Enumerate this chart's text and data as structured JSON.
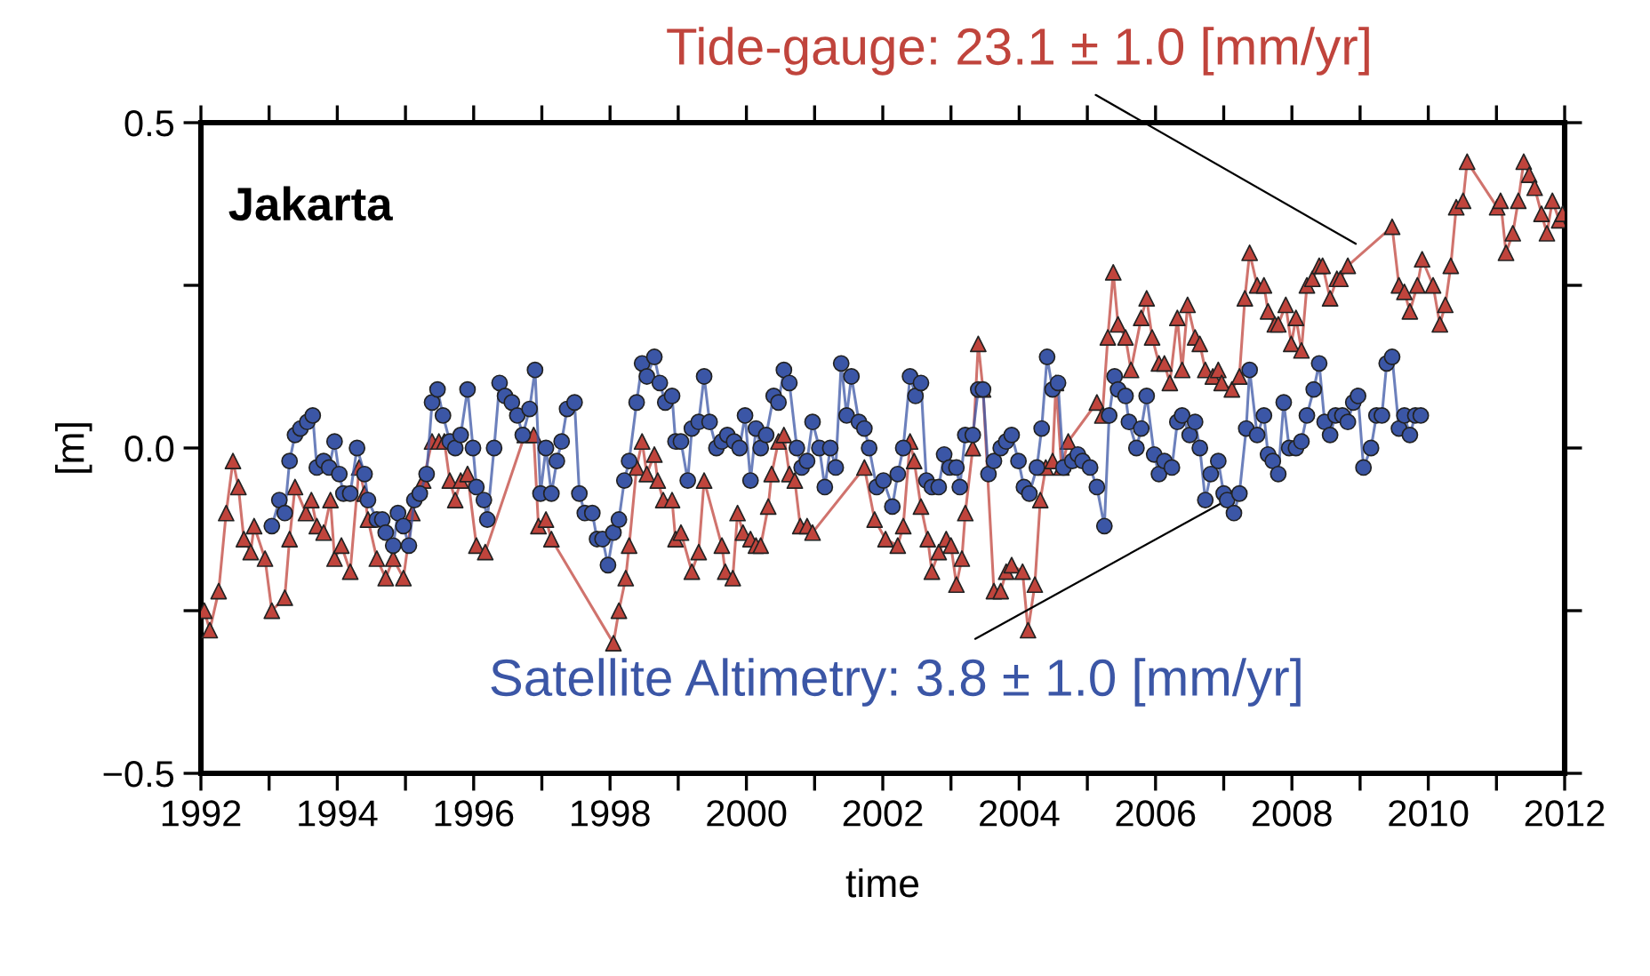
{
  "chart_data": {
    "type": "line",
    "title": "Jakarta",
    "xlabel": "time",
    "ylabel": "[m]",
    "xlim": [
      1992,
      2012
    ],
    "xticks": [
      1992,
      {
        "value": 1993,
        "label": null
      },
      1994,
      {
        "value": 1995,
        "label": null
      },
      1996,
      {
        "value": 1997,
        "label": null
      },
      1998,
      {
        "value": 1999,
        "label": null
      },
      2000,
      {
        "value": 2001,
        "label": null
      },
      2002,
      {
        "value": 2003,
        "label": null
      },
      2004,
      {
        "value": 2005,
        "label": null
      },
      2006,
      {
        "value": 2007,
        "label": null
      },
      2008,
      {
        "value": 2009,
        "label": null
      },
      2010,
      {
        "value": 2011,
        "label": null
      },
      2012
    ],
    "ylim": [
      -0.5,
      0.5
    ],
    "yticks": [
      {
        "value": -0.5,
        "label": "−0.5"
      },
      {
        "value": -0.25,
        "label": null
      },
      {
        "value": 0,
        "label": "0.0"
      },
      {
        "value": 0.25,
        "label": null
      },
      0.5
    ],
    "grid": false,
    "legend": false,
    "line_style": "solid",
    "series": [
      {
        "color": "#c0443c",
        "marker": "triangle",
        "x": [
          1992.05,
          1992.13,
          1992.26,
          1992.37,
          1992.47,
          1992.55,
          1992.63,
          1992.73,
          1992.78,
          1992.94,
          1993.04,
          1993.23,
          1993.3,
          1993.38,
          1993.54,
          1993.62,
          1993.7,
          1993.8,
          1993.9,
          1993.96,
          1994.06,
          1994.19,
          1994.32,
          1994.4,
          1994.45,
          1994.58,
          1994.71,
          1994.82,
          1994.97,
          1995.1,
          1995.26,
          1995.39,
          1995.49,
          1995.57,
          1995.65,
          1995.73,
          1995.81,
          1995.91,
          1996.04,
          1996.17,
          1996.75,
          1996.88,
          1996.95,
          1997.06,
          1997.14,
          1998.05,
          1998.13,
          1998.23,
          1998.28,
          1998.39,
          1998.47,
          1998.54,
          1998.65,
          1998.7,
          1998.78,
          1998.91,
          1998.96,
          1999.04,
          1999.2,
          1999.3,
          1999.38,
          1999.64,
          1999.69,
          1999.8,
          1999.87,
          1999.95,
          2000.06,
          2000.14,
          2000.21,
          2000.32,
          2000.37,
          2000.47,
          2000.55,
          2000.63,
          2000.71,
          2000.79,
          2000.89,
          2000.97,
          2001.73,
          2001.88,
          2002.04,
          2002.22,
          2002.3,
          2002.4,
          2002.46,
          2002.56,
          2002.66,
          2002.72,
          2002.82,
          2002.93,
          2003.0,
          2003.08,
          2003.16,
          2003.21,
          2003.32,
          2003.4,
          2003.47,
          2003.63,
          2003.73,
          2003.81,
          2003.89,
          2004.05,
          2004.13,
          2004.23,
          2004.31,
          2004.39,
          2004.49,
          2004.54,
          2004.62,
          2004.72,
          2005.14,
          2005.22,
          2005.3,
          2005.38,
          2005.45,
          2005.56,
          2005.64,
          2005.79,
          2005.87,
          2005.95,
          2006.05,
          2006.13,
          2006.21,
          2006.32,
          2006.39,
          2006.47,
          2006.58,
          2006.65,
          2006.73,
          2006.84,
          2006.92,
          2006.97,
          2007.12,
          2007.23,
          2007.31,
          2007.38,
          2007.49,
          2007.59,
          2007.65,
          2007.75,
          2007.8,
          2007.91,
          2007.99,
          2008.06,
          2008.14,
          2008.22,
          2008.3,
          2008.4,
          2008.45,
          2008.56,
          2008.66,
          2008.71,
          2008.82,
          2009.47,
          2009.57,
          2009.65,
          2009.73,
          2009.84,
          2009.91,
          2010.07,
          2010.17,
          2010.25,
          2010.33,
          2010.41,
          2010.51,
          2010.57,
          2011.01,
          2011.06,
          2011.14,
          2011.24,
          2011.32,
          2011.4,
          2011.48,
          2011.56,
          2011.66,
          2011.74,
          2011.82,
          2011.92,
          2011.97
        ],
        "values": [
          -0.25,
          -0.28,
          -0.22,
          -0.1,
          -0.02,
          -0.06,
          -0.14,
          -0.16,
          -0.12,
          -0.17,
          -0.25,
          -0.23,
          -0.14,
          -0.06,
          -0.1,
          -0.08,
          -0.12,
          -0.13,
          -0.08,
          -0.17,
          -0.15,
          -0.19,
          -0.03,
          -0.07,
          -0.11,
          -0.17,
          -0.2,
          -0.17,
          -0.2,
          -0.1,
          -0.05,
          0.01,
          0.01,
          0.01,
          -0.05,
          -0.08,
          -0.05,
          -0.04,
          -0.15,
          -0.16,
          0.02,
          0.02,
          -0.12,
          -0.11,
          -0.14,
          -0.3,
          -0.25,
          -0.2,
          -0.15,
          -0.03,
          0.01,
          -0.04,
          -0.01,
          -0.05,
          -0.08,
          -0.08,
          -0.14,
          -0.13,
          -0.19,
          -0.16,
          -0.05,
          -0.15,
          -0.19,
          -0.2,
          -0.1,
          -0.13,
          -0.14,
          -0.15,
          -0.15,
          -0.09,
          -0.04,
          0.01,
          0.02,
          -0.04,
          -0.05,
          -0.12,
          -0.12,
          -0.13,
          -0.03,
          -0.11,
          -0.14,
          -0.15,
          -0.12,
          0.01,
          -0.02,
          -0.09,
          -0.14,
          -0.19,
          -0.16,
          -0.14,
          -0.15,
          -0.21,
          -0.17,
          -0.1,
          0.0,
          0.16,
          0.09,
          -0.22,
          -0.22,
          -0.19,
          -0.18,
          -0.19,
          -0.28,
          -0.21,
          -0.08,
          -0.03,
          -0.02,
          0.1,
          -0.03,
          0.01,
          0.07,
          0.05,
          0.17,
          0.27,
          0.19,
          0.17,
          0.12,
          0.2,
          0.23,
          0.17,
          0.13,
          0.13,
          0.1,
          0.2,
          0.12,
          0.22,
          0.17,
          0.16,
          0.12,
          0.11,
          0.12,
          0.1,
          0.09,
          0.11,
          0.23,
          0.3,
          0.25,
          0.25,
          0.21,
          0.19,
          0.19,
          0.22,
          0.16,
          0.2,
          0.15,
          0.25,
          0.26,
          0.28,
          0.28,
          0.23,
          0.26,
          0.26,
          0.28,
          0.34,
          0.25,
          0.24,
          0.21,
          0.25,
          0.29,
          0.25,
          0.19,
          0.22,
          0.28,
          0.37,
          0.38,
          0.44,
          0.37,
          0.38,
          0.3,
          0.33,
          0.38,
          0.44,
          0.42,
          0.4,
          0.36,
          0.33,
          0.38,
          0.35,
          0.36
        ]
      },
      {
        "color": "#3b56a6",
        "marker": "circle",
        "x": [
          1993.04,
          1993.15,
          1993.23,
          1993.3,
          1993.38,
          1993.46,
          1993.56,
          1993.64,
          1993.7,
          1993.8,
          1993.88,
          1993.96,
          1994.03,
          1994.09,
          1994.19,
          1994.29,
          1994.4,
          1994.45,
          1994.58,
          1994.66,
          1994.71,
          1994.82,
          1994.89,
          1994.97,
          1995.05,
          1995.13,
          1995.21,
          1995.31,
          1995.39,
          1995.47,
          1995.55,
          1995.65,
          1995.73,
          1995.81,
          1995.91,
          1995.99,
          1996.04,
          1996.15,
          1996.2,
          1996.3,
          1996.38,
          1996.46,
          1996.56,
          1996.64,
          1996.72,
          1996.82,
          1996.9,
          1996.98,
          1997.06,
          1997.14,
          1997.22,
          1997.29,
          1997.37,
          1997.48,
          1997.55,
          1997.63,
          1997.74,
          1997.81,
          1997.89,
          1997.97,
          1998.05,
          1998.13,
          1998.21,
          1998.28,
          1998.39,
          1998.47,
          1998.54,
          1998.65,
          1998.73,
          1998.81,
          1998.91,
          1998.96,
          1999.04,
          1999.14,
          1999.2,
          1999.3,
          1999.38,
          1999.46,
          1999.56,
          1999.64,
          1999.72,
          1999.82,
          1999.9,
          1999.98,
          2000.06,
          2000.14,
          2000.21,
          2000.29,
          2000.4,
          2000.47,
          2000.55,
          2000.63,
          2000.74,
          2000.81,
          2000.89,
          2000.97,
          2001.07,
          2001.15,
          2001.23,
          2001.31,
          2001.39,
          2001.47,
          2001.54,
          2001.65,
          2001.73,
          2001.8,
          2001.91,
          2002.01,
          2002.14,
          2002.22,
          2002.3,
          2002.4,
          2002.48,
          2002.56,
          2002.64,
          2002.72,
          2002.82,
          2002.9,
          2002.98,
          2003.08,
          2003.13,
          2003.21,
          2003.32,
          2003.4,
          2003.47,
          2003.55,
          2003.63,
          2003.73,
          2003.81,
          2003.89,
          2003.99,
          2004.07,
          2004.15,
          2004.26,
          2004.33,
          2004.41,
          2004.49,
          2004.57,
          2004.65,
          2004.78,
          2004.86,
          2004.93,
          2005.04,
          2005.14,
          2005.25,
          2005.32,
          2005.4,
          2005.45,
          2005.56,
          2005.61,
          2005.72,
          2005.79,
          2005.87,
          2005.98,
          2006.05,
          2006.13,
          2006.24,
          2006.32,
          2006.39,
          2006.5,
          2006.58,
          2006.65,
          2006.73,
          2006.81,
          2006.92,
          2007.0,
          2007.05,
          2007.15,
          2007.23,
          2007.33,
          2007.38,
          2007.49,
          2007.59,
          2007.65,
          2007.72,
          2007.8,
          2007.88,
          2007.96,
          2008.06,
          2008.14,
          2008.22,
          2008.32,
          2008.4,
          2008.48,
          2008.56,
          2008.64,
          2008.74,
          2008.82,
          2008.9,
          2008.97,
          2009.05,
          2009.16,
          2009.24,
          2009.32,
          2009.39,
          2009.47,
          2009.57,
          2009.65,
          2009.73,
          2009.81,
          2009.89
        ],
        "values": [
          -0.12,
          -0.08,
          -0.1,
          -0.02,
          0.02,
          0.03,
          0.04,
          0.05,
          -0.03,
          -0.02,
          -0.03,
          0.01,
          -0.04,
          -0.07,
          -0.07,
          0.0,
          -0.04,
          -0.08,
          -0.11,
          -0.11,
          -0.13,
          -0.15,
          -0.1,
          -0.12,
          -0.15,
          -0.08,
          -0.07,
          -0.04,
          0.07,
          0.09,
          0.05,
          0.01,
          0.0,
          0.02,
          0.09,
          0.0,
          -0.06,
          -0.08,
          -0.11,
          0.0,
          0.1,
          0.08,
          0.07,
          0.05,
          0.02,
          0.06,
          0.12,
          -0.07,
          0.0,
          -0.07,
          -0.02,
          0.01,
          0.06,
          0.07,
          -0.07,
          -0.1,
          -0.1,
          -0.14,
          -0.14,
          -0.18,
          -0.13,
          -0.11,
          -0.05,
          -0.02,
          0.07,
          0.13,
          0.11,
          0.14,
          0.1,
          0.07,
          0.08,
          0.01,
          0.01,
          -0.05,
          0.03,
          0.04,
          0.11,
          0.04,
          0.0,
          0.01,
          0.02,
          0.01,
          0.0,
          0.05,
          -0.05,
          0.03,
          0.0,
          0.02,
          0.08,
          0.07,
          0.12,
          0.1,
          0.0,
          -0.03,
          -0.02,
          0.04,
          0.0,
          -0.06,
          0.0,
          -0.03,
          0.13,
          0.05,
          0.11,
          0.04,
          0.03,
          0.0,
          -0.06,
          -0.05,
          -0.09,
          -0.04,
          0.0,
          0.11,
          0.08,
          0.1,
          -0.05,
          -0.06,
          -0.06,
          -0.01,
          -0.03,
          -0.03,
          -0.06,
          0.02,
          0.02,
          0.09,
          0.09,
          -0.04,
          -0.02,
          0.0,
          0.01,
          0.02,
          -0.02,
          -0.06,
          -0.07,
          -0.03,
          0.03,
          0.14,
          0.09,
          0.1,
          -0.03,
          -0.02,
          -0.01,
          -0.02,
          -0.03,
          -0.06,
          -0.12,
          0.05,
          0.11,
          0.09,
          0.08,
          0.04,
          0.0,
          0.03,
          0.08,
          -0.01,
          -0.04,
          -0.02,
          -0.03,
          0.04,
          0.05,
          0.02,
          0.04,
          0.0,
          -0.08,
          -0.04,
          -0.02,
          -0.07,
          -0.08,
          -0.1,
          -0.07,
          0.03,
          0.12,
          0.02,
          0.05,
          -0.01,
          -0.02,
          -0.04,
          0.07,
          0.0,
          0.0,
          0.01,
          0.05,
          0.09,
          0.13,
          0.04,
          0.02,
          0.05,
          0.05,
          0.04,
          0.07,
          0.08,
          -0.03,
          0.0,
          0.05,
          0.05,
          0.13,
          0.14,
          0.03,
          0.05,
          0.02,
          0.05,
          0.05
        ]
      }
    ],
    "annotations": [
      {
        "text": "Tide-gauge: 23.1 ± 1.0 [mm/yr]",
        "x": 2009.0,
        "y": 0.31
      },
      {
        "text": "Satellite Altimetry: 3.8 ± 1.0 [mm/yr]",
        "x": 2007.05,
        "y": -0.08
      }
    ]
  }
}
